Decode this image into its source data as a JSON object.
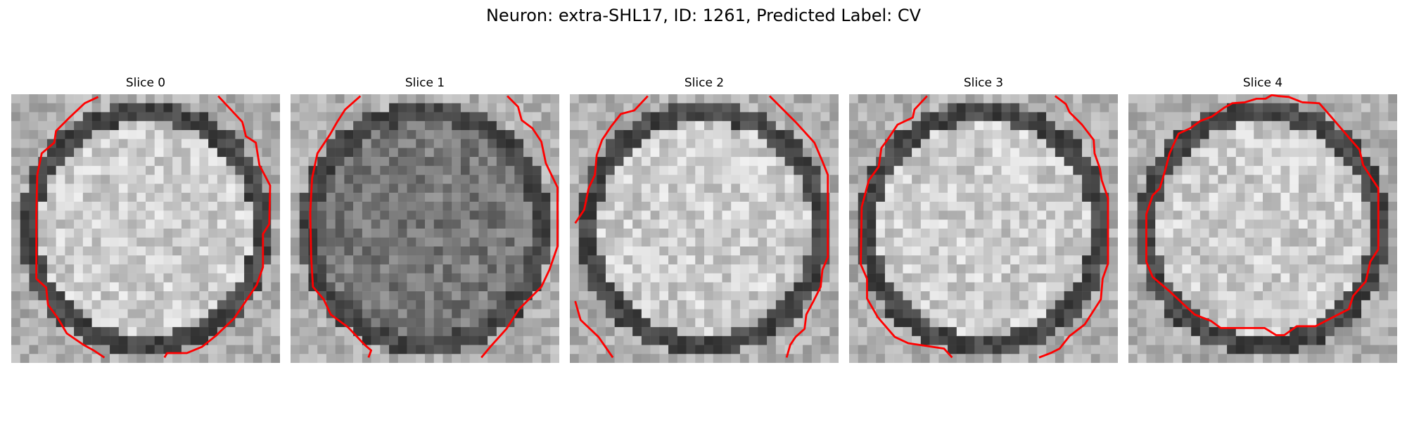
{
  "figure": {
    "title": "Neuron: extra-SHL17, ID: 1261, Predicted Label: CV",
    "panels": [
      {
        "label": "Slice 0",
        "image_kind": "grayscale-em-slice",
        "mean_tone": "light",
        "contour_color": "#ff0000"
      },
      {
        "label": "Slice 1",
        "image_kind": "grayscale-em-slice",
        "mean_tone": "mid",
        "contour_color": "#ff0000"
      },
      {
        "label": "Slice 2",
        "image_kind": "grayscale-em-slice",
        "mean_tone": "light",
        "contour_color": "#ff0000"
      },
      {
        "label": "Slice 3",
        "image_kind": "grayscale-em-slice",
        "mean_tone": "light",
        "contour_color": "#ff0000"
      },
      {
        "label": "Slice 4",
        "image_kind": "grayscale-em-slice",
        "mean_tone": "light",
        "contour_color": "#ff0000"
      }
    ]
  }
}
